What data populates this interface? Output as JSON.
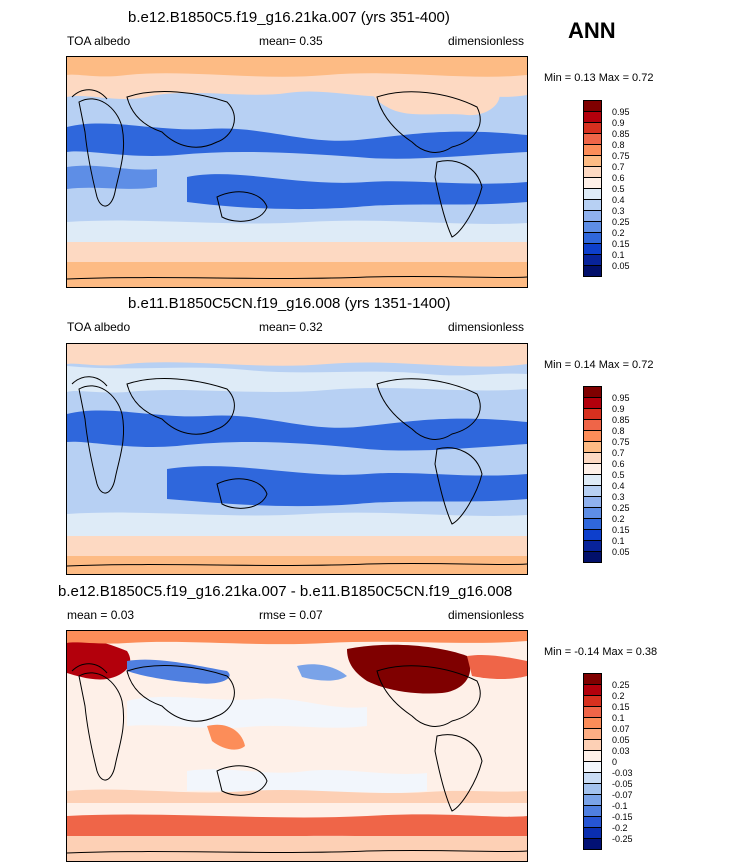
{
  "season": "ANN",
  "panels": [
    {
      "title": "b.e12.B1850C5.f19_g16.21ka.007 (yrs 351-400)",
      "left_label": "TOA albedo",
      "center_label": "mean=  0.35",
      "right_label": "dimensionless",
      "minmax": "Min =   0.13 Max =   0.72",
      "colorbar": {
        "labels": [
          "0.95",
          "0.9",
          "0.85",
          "0.8",
          "0.75",
          "0.7",
          "0.6",
          "0.5",
          "0.4",
          "0.3",
          "0.25",
          "0.2",
          "0.15",
          "0.1",
          "0.05"
        ],
        "colors": [
          "#7f0000",
          "#b3000c",
          "#d7301f",
          "#ef6548",
          "#fc8d59",
          "#fdbb84",
          "#fdd9c2",
          "#fef0e8",
          "#deebf7",
          "#b7d0f3",
          "#8fb1ee",
          "#5e8ee6",
          "#2f67dc",
          "#0d3fcc",
          "#08239a",
          "#02106b"
        ]
      }
    },
    {
      "title": "b.e11.B1850C5CN.f19_g16.008 (yrs 1351-1400)",
      "left_label": "TOA albedo",
      "center_label": "mean=  0.32",
      "right_label": "dimensionless",
      "minmax": "Min =   0.14 Max =   0.72",
      "colorbar": {
        "labels": [
          "0.95",
          "0.9",
          "0.85",
          "0.8",
          "0.75",
          "0.7",
          "0.6",
          "0.5",
          "0.4",
          "0.3",
          "0.25",
          "0.2",
          "0.15",
          "0.1",
          "0.05"
        ],
        "colors": [
          "#7f0000",
          "#b3000c",
          "#d7301f",
          "#ef6548",
          "#fc8d59",
          "#fdbb84",
          "#fdd9c2",
          "#fef0e8",
          "#deebf7",
          "#b7d0f3",
          "#8fb1ee",
          "#5e8ee6",
          "#2f67dc",
          "#0d3fcc",
          "#08239a",
          "#02106b"
        ]
      }
    },
    {
      "title": "b.e12.B1850C5.f19_g16.21ka.007 - b.e11.B1850C5CN.f19_g16.008",
      "left_label": "mean =   0.03",
      "center_label": "rmse =   0.07",
      "right_label": "dimensionless",
      "minmax": "Min =  -0.14 Max =   0.38",
      "colorbar": {
        "labels": [
          "0.25",
          "0.2",
          "0.15",
          "0.1",
          "0.07",
          "0.05",
          "0.03",
          "0",
          "-0.03",
          "-0.05",
          "-0.07",
          "-0.1",
          "-0.15",
          "-0.2",
          "-0.25"
        ],
        "colors": [
          "#7f0000",
          "#b3000c",
          "#d7301f",
          "#ef6548",
          "#fc8d59",
          "#fdae84",
          "#fdd0b5",
          "#fef0e8",
          "#f2f6fc",
          "#c9dcf5",
          "#a3c2ee",
          "#7aa3e8",
          "#4f7fe0",
          "#2655d4",
          "#0a2eb0",
          "#021175"
        ]
      }
    }
  ]
}
